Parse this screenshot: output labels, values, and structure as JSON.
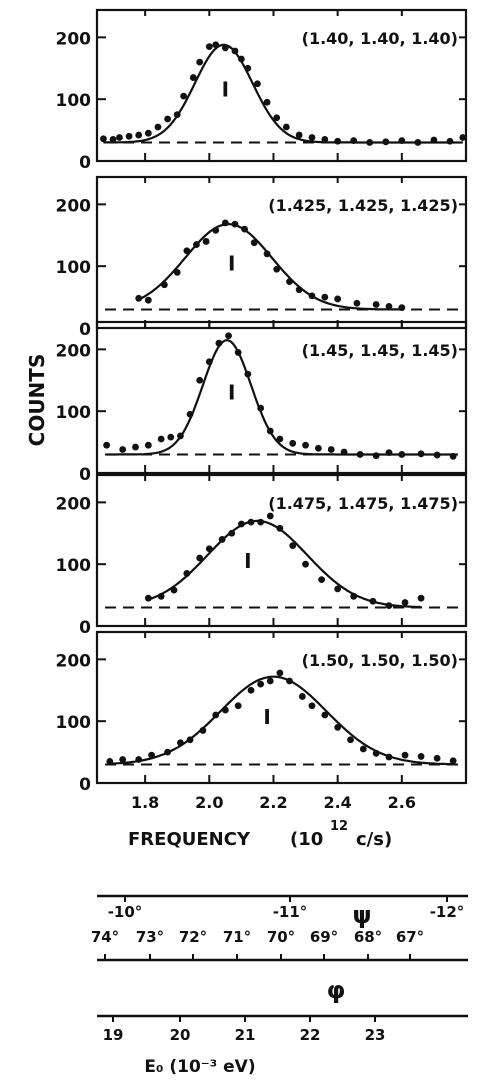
{
  "chart_data": {
    "type": "scatter",
    "ylabel": "COUNTS",
    "xlabel": "FREQUENCY",
    "xlabel_unit": "(10",
    "xlabel_exp": "12",
    "xlabel_unit_tail": "c/s)",
    "xlim": [
      1.65,
      2.8
    ],
    "ylim": [
      0,
      220
    ],
    "x_ticks": [
      1.8,
      2.0,
      2.2,
      2.4,
      2.6
    ],
    "x_tick_labels": [
      "1.8",
      "2.0",
      "2.2",
      "2.4",
      "2.6"
    ],
    "y_ticks": [
      0,
      100,
      200
    ],
    "y_tick_labels": [
      "0",
      "100",
      "200"
    ],
    "grid": false,
    "panels": [
      {
        "label": "(1.40, 1.40, 1.40)",
        "marker": "I",
        "peak_x": 2.05,
        "baseline": 30,
        "points": [
          [
            1.67,
            36
          ],
          [
            1.7,
            35
          ],
          [
            1.72,
            38
          ],
          [
            1.75,
            40
          ],
          [
            1.78,
            42
          ],
          [
            1.81,
            45
          ],
          [
            1.84,
            55
          ],
          [
            1.87,
            68
          ],
          [
            1.9,
            75
          ],
          [
            1.92,
            105
          ],
          [
            1.95,
            135
          ],
          [
            1.97,
            160
          ],
          [
            2.0,
            185
          ],
          [
            2.02,
            188
          ],
          [
            2.05,
            183
          ],
          [
            2.08,
            178
          ],
          [
            2.1,
            165
          ],
          [
            2.12,
            150
          ],
          [
            2.15,
            125
          ],
          [
            2.18,
            95
          ],
          [
            2.21,
            70
          ],
          [
            2.24,
            55
          ],
          [
            2.28,
            42
          ],
          [
            2.32,
            38
          ],
          [
            2.36,
            35
          ],
          [
            2.4,
            32
          ],
          [
            2.45,
            33
          ],
          [
            2.5,
            30
          ],
          [
            2.55,
            31
          ],
          [
            2.6,
            33
          ],
          [
            2.65,
            30
          ],
          [
            2.7,
            34
          ],
          [
            2.75,
            32
          ],
          [
            2.79,
            38
          ]
        ],
        "fit": {
          "center": 2.045,
          "sigma": 0.09,
          "amplitude": 158,
          "base": 30
        }
      },
      {
        "label": "(1.425, 1.425, 1.425)",
        "marker": "I",
        "peak_x": 2.07,
        "baseline": 30,
        "points": [
          [
            1.78,
            48
          ],
          [
            1.81,
            45
          ],
          [
            1.86,
            70
          ],
          [
            1.9,
            90
          ],
          [
            1.93,
            125
          ],
          [
            1.96,
            135
          ],
          [
            1.99,
            140
          ],
          [
            2.02,
            158
          ],
          [
            2.05,
            170
          ],
          [
            2.08,
            168
          ],
          [
            2.11,
            160
          ],
          [
            2.14,
            138
          ],
          [
            2.18,
            120
          ],
          [
            2.21,
            95
          ],
          [
            2.25,
            75
          ],
          [
            2.28,
            62
          ],
          [
            2.32,
            52
          ],
          [
            2.36,
            50
          ],
          [
            2.4,
            47
          ],
          [
            2.46,
            40
          ],
          [
            2.52,
            38
          ],
          [
            2.56,
            35
          ],
          [
            2.6,
            33
          ]
        ],
        "fit": {
          "center": 2.06,
          "sigma": 0.135,
          "amplitude": 138,
          "base": 30
        }
      },
      {
        "label": "(1.45, 1.45, 1.45)",
        "marker": "I",
        "peak_x": 2.07,
        "baseline": 30,
        "points": [
          [
            1.68,
            45
          ],
          [
            1.73,
            38
          ],
          [
            1.77,
            42
          ],
          [
            1.81,
            45
          ],
          [
            1.85,
            55
          ],
          [
            1.88,
            58
          ],
          [
            1.91,
            60
          ],
          [
            1.94,
            95
          ],
          [
            1.97,
            150
          ],
          [
            2.0,
            180
          ],
          [
            2.03,
            210
          ],
          [
            2.06,
            222
          ],
          [
            2.09,
            195
          ],
          [
            2.12,
            160
          ],
          [
            2.16,
            105
          ],
          [
            2.19,
            68
          ],
          [
            2.22,
            55
          ],
          [
            2.26,
            48
          ],
          [
            2.3,
            45
          ],
          [
            2.34,
            40
          ],
          [
            2.38,
            38
          ],
          [
            2.42,
            34
          ],
          [
            2.47,
            30
          ],
          [
            2.52,
            28
          ],
          [
            2.56,
            33
          ],
          [
            2.6,
            30
          ],
          [
            2.66,
            31
          ],
          [
            2.71,
            29
          ],
          [
            2.76,
            27
          ]
        ],
        "fit": {
          "center": 2.055,
          "sigma": 0.075,
          "amplitude": 185,
          "base": 30
        }
      },
      {
        "label": "(1.475, 1.475, 1.475)",
        "marker": "I",
        "peak_x": 2.12,
        "baseline": 30,
        "points": [
          [
            1.81,
            45
          ],
          [
            1.85,
            48
          ],
          [
            1.89,
            58
          ],
          [
            1.93,
            85
          ],
          [
            1.97,
            110
          ],
          [
            2.0,
            125
          ],
          [
            2.04,
            140
          ],
          [
            2.07,
            150
          ],
          [
            2.1,
            165
          ],
          [
            2.13,
            168
          ],
          [
            2.16,
            168
          ],
          [
            2.19,
            178
          ],
          [
            2.22,
            158
          ],
          [
            2.26,
            130
          ],
          [
            2.3,
            100
          ],
          [
            2.35,
            75
          ],
          [
            2.4,
            60
          ],
          [
            2.45,
            48
          ],
          [
            2.51,
            40
          ],
          [
            2.56,
            33
          ],
          [
            2.61,
            38
          ],
          [
            2.66,
            45
          ]
        ],
        "fit": {
          "center": 2.15,
          "sigma": 0.155,
          "amplitude": 140,
          "base": 30
        }
      },
      {
        "label": "(1.50, 1.50, 1.50)",
        "marker": "I",
        "peak_x": 2.18,
        "baseline": 30,
        "points": [
          [
            1.69,
            35
          ],
          [
            1.73,
            38
          ],
          [
            1.78,
            38
          ],
          [
            1.82,
            45
          ],
          [
            1.87,
            50
          ],
          [
            1.91,
            65
          ],
          [
            1.94,
            70
          ],
          [
            1.98,
            85
          ],
          [
            2.02,
            110
          ],
          [
            2.05,
            118
          ],
          [
            2.09,
            125
          ],
          [
            2.13,
            150
          ],
          [
            2.16,
            160
          ],
          [
            2.19,
            165
          ],
          [
            2.22,
            178
          ],
          [
            2.25,
            165
          ],
          [
            2.29,
            140
          ],
          [
            2.32,
            125
          ],
          [
            2.36,
            110
          ],
          [
            2.4,
            90
          ],
          [
            2.44,
            70
          ],
          [
            2.48,
            55
          ],
          [
            2.52,
            48
          ],
          [
            2.56,
            42
          ],
          [
            2.61,
            45
          ],
          [
            2.66,
            43
          ],
          [
            2.71,
            40
          ],
          [
            2.76,
            36
          ]
        ],
        "fit": {
          "center": 2.2,
          "sigma": 0.165,
          "amplitude": 142,
          "base": 30
        }
      }
    ],
    "secondary_scales": [
      {
        "name": "ψ",
        "tick_labels": [
          "-10°",
          "-11°",
          "-12°"
        ]
      },
      {
        "name": "φ",
        "tick_labels": [
          "74°",
          "73°",
          "72°",
          "71°",
          "70°",
          "69°",
          "68°",
          "67°"
        ]
      },
      {
        "name": "E₀ (10⁻³ eV)",
        "tick_labels": [
          "19",
          "20",
          "21",
          "22",
          "23"
        ]
      }
    ]
  }
}
